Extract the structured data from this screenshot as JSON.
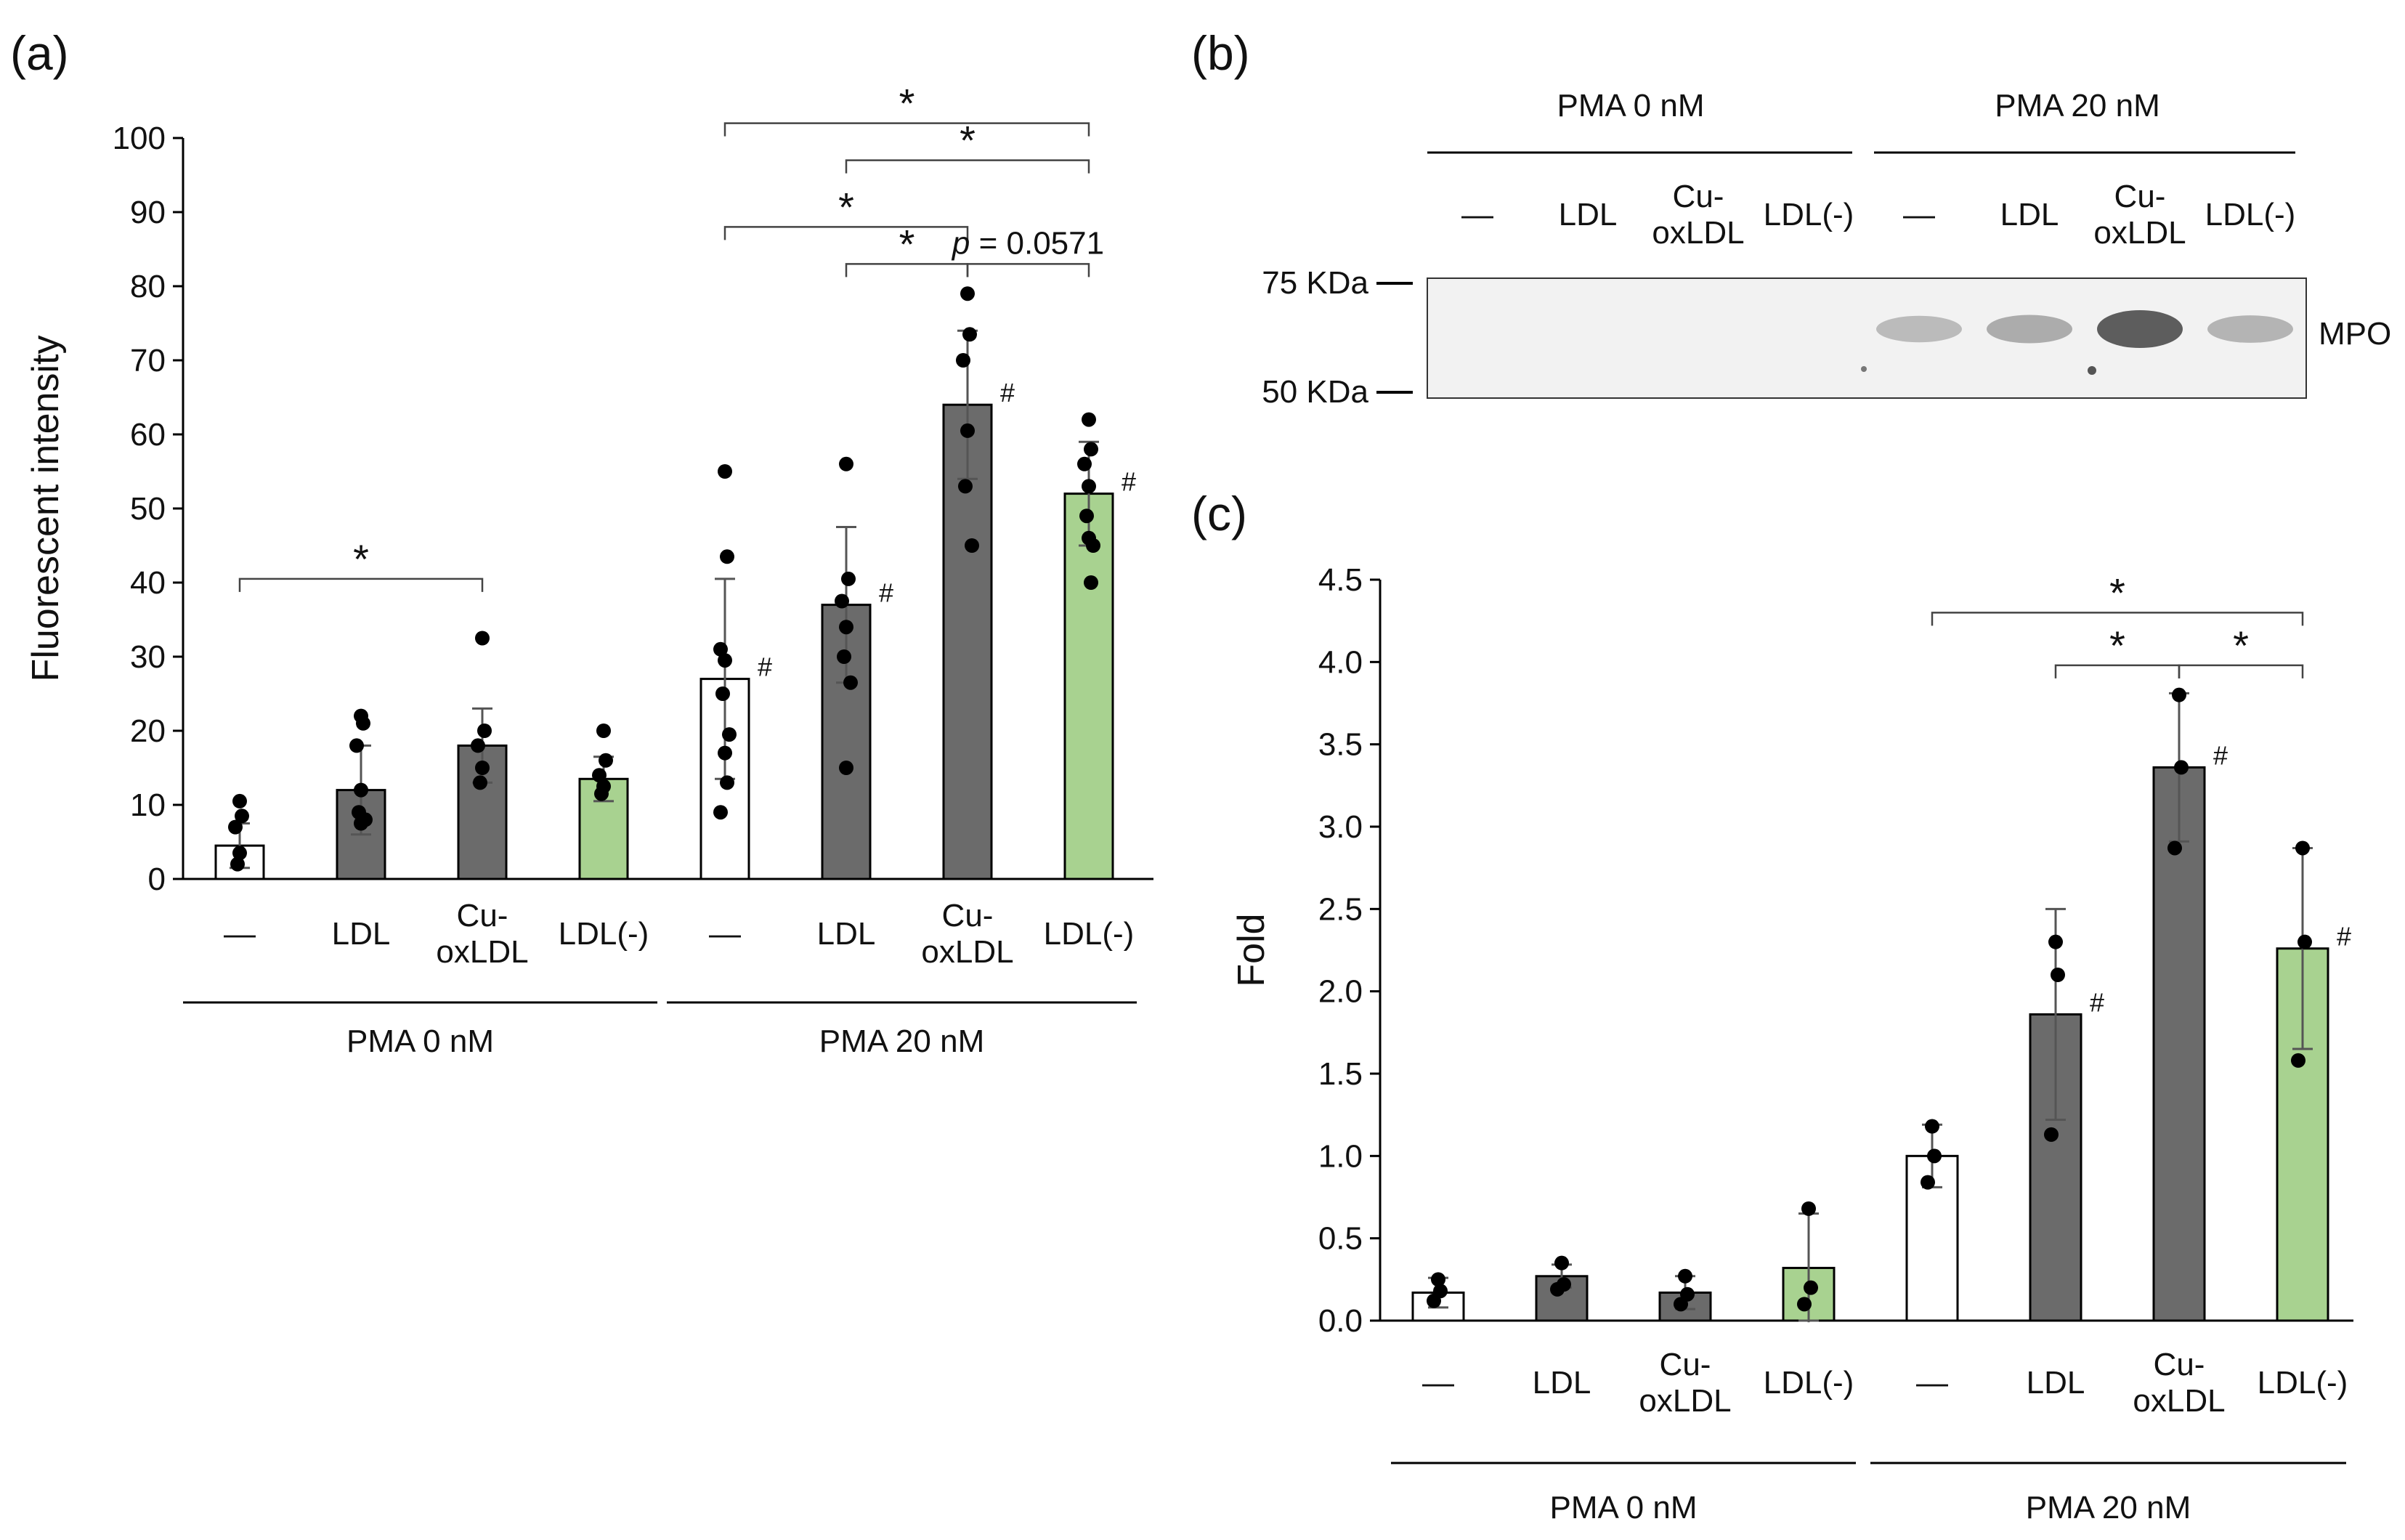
{
  "panel_labels": {
    "a": "(a)",
    "b": "(b)",
    "c": "(c)"
  },
  "groups": {
    "pma0": "PMA 0 nM",
    "pma20": "PMA 20 nM"
  },
  "conditions": [
    "—",
    "LDL",
    "Cu-\noxLDL",
    "LDL(-)",
    "—",
    "LDL",
    "Cu-\noxLDL",
    "LDL(-)"
  ],
  "colors": {
    "white": "#ffffff",
    "gray": "#6b6b6b",
    "green": "#a8d290",
    "axis": "#000000"
  },
  "chart_data": [
    {
      "id": "a",
      "type": "bar",
      "ylabel": "Fluorescent intensity",
      "ylim": [
        0,
        100
      ],
      "yticks": [
        "0",
        "10",
        "20",
        "30",
        "40",
        "50",
        "60",
        "70",
        "80",
        "90",
        "100"
      ],
      "values": [
        4.5,
        12,
        18,
        13.5,
        27,
        37,
        64,
        52
      ],
      "errors": [
        3,
        6,
        5,
        3,
        13.5,
        10.5,
        10,
        7
      ],
      "fills": [
        "white",
        "gray",
        "gray",
        "green",
        "white",
        "gray",
        "gray",
        "green"
      ],
      "points": [
        [
          10.5,
          8.5,
          7,
          3.5,
          2
        ],
        [
          22,
          21,
          18,
          12,
          9,
          8,
          7.5
        ],
        [
          32.5,
          20,
          18,
          15,
          13
        ],
        [
          20,
          16,
          14,
          12.5,
          11.5
        ],
        [
          55,
          43.5,
          31,
          29.5,
          25,
          19.5,
          17,
          13,
          9
        ],
        [
          56,
          40.5,
          37.5,
          34,
          30,
          26.5,
          15
        ],
        [
          79,
          73.5,
          70,
          60.5,
          53,
          45
        ],
        [
          62,
          58,
          56,
          53,
          49,
          45,
          46,
          40
        ]
      ],
      "hash_marks": [
        false,
        false,
        false,
        false,
        true,
        true,
        true,
        true
      ],
      "hash_text": "#",
      "significance": [
        {
          "from": 0,
          "to": 2,
          "y": 40.5,
          "label": "*"
        },
        {
          "from": 4,
          "to": 6,
          "y": 88,
          "label": "*"
        },
        {
          "from": 5,
          "to": 6,
          "y": 83,
          "label": "*"
        },
        {
          "from": 4,
          "to": 7,
          "y": 102,
          "label": "*"
        },
        {
          "from": 5,
          "to": 7,
          "y": 97,
          "label": "*"
        },
        {
          "from": 6,
          "to": 7,
          "y": 83,
          "label": "p = 0.0571",
          "italic_prefix": "p"
        }
      ]
    },
    {
      "id": "c",
      "type": "bar",
      "ylabel": "Fold",
      "ylim": [
        0,
        4.5
      ],
      "yticks": [
        "0.0",
        "0.5",
        "1.0",
        "1.5",
        "2.0",
        "2.5",
        "3.0",
        "3.5",
        "4.0",
        "4.5"
      ],
      "values": [
        0.17,
        0.27,
        0.17,
        0.32,
        1.0,
        1.86,
        3.36,
        2.26
      ],
      "errors": [
        0.09,
        0.07,
        0.1,
        0.33,
        0.19,
        0.64,
        0.45,
        0.61
      ],
      "fills": [
        "white",
        "gray",
        "gray",
        "green",
        "white",
        "gray",
        "gray",
        "green"
      ],
      "points": [
        [
          0.25,
          0.18,
          0.12
        ],
        [
          0.35,
          0.22,
          0.19
        ],
        [
          0.27,
          0.16,
          0.1
        ],
        [
          0.68,
          0.2,
          0.1
        ],
        [
          1.18,
          1.0,
          0.84
        ],
        [
          2.3,
          2.1,
          1.13
        ],
        [
          3.8,
          3.36,
          2.87
        ],
        [
          2.87,
          2.3,
          1.58
        ]
      ],
      "hash_marks": [
        false,
        false,
        false,
        false,
        false,
        true,
        true,
        true
      ],
      "hash_text": "#",
      "significance": [
        {
          "from": 5,
          "to": 6,
          "y": 3.98,
          "label": "*"
        },
        {
          "from": 6,
          "to": 7,
          "y": 3.98,
          "label": "*"
        },
        {
          "from": 4,
          "to": 7,
          "y": 4.3,
          "label": "*"
        }
      ]
    }
  ],
  "blot": {
    "marker_high": "75 KDa",
    "marker_low": "50 KDa",
    "band_label": "MPO",
    "band_intensity": [
      0,
      0,
      0,
      0,
      0.25,
      0.35,
      0.85,
      0.3
    ]
  }
}
